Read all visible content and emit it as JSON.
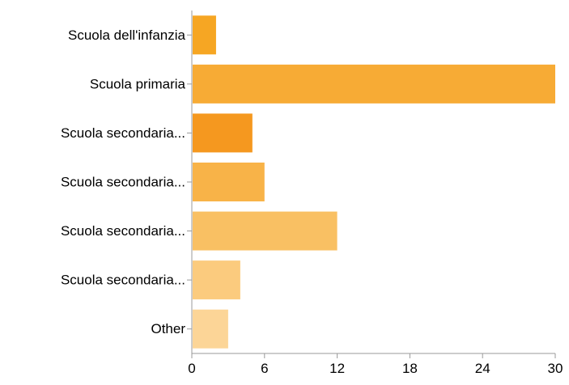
{
  "chart_data": {
    "type": "bar",
    "orientation": "horizontal",
    "categories": [
      "Scuola dell'infanzia",
      "Scuola primaria",
      "Scuola secondaria...",
      "Scuola secondaria...",
      "Scuola secondaria...",
      "Scuola secondaria...",
      "Other"
    ],
    "values": [
      2,
      30,
      5,
      6,
      12,
      4,
      3
    ],
    "bar_colors": [
      "#F6A623",
      "#F7AB35",
      "#F5981F",
      "#F8B348",
      "#F9C063",
      "#FBCB7E",
      "#FCD597"
    ],
    "xlim": [
      0,
      30
    ],
    "xticks": [
      0,
      6,
      12,
      18,
      24,
      30
    ],
    "grid": false,
    "legend": "none",
    "title": "",
    "xlabel": "",
    "ylabel": "",
    "axis_color": "#999999"
  }
}
